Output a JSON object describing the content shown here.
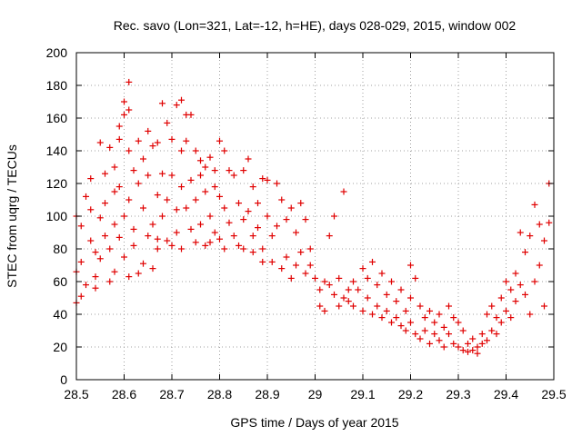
{
  "chart_data": {
    "type": "scatter",
    "title": "Rec. savo (Lon=321, Lat=-12, h=HE), days 028-029, 2015, window 002",
    "xlabel": "GPS time / Days of year 2015",
    "ylabel": "STEC from uqrg / TECUs",
    "xlim": [
      28.5,
      29.5
    ],
    "ylim": [
      0,
      200
    ],
    "x_ticks": [
      28.5,
      28.6,
      28.7,
      28.8,
      28.9,
      29.0,
      29.1,
      29.2,
      29.3,
      29.4,
      29.5
    ],
    "x_tick_labels": [
      "28.5",
      "28.6",
      "28.7",
      "28.8",
      "28.9",
      "29",
      "29.1",
      "29.2",
      "29.3",
      "29.4",
      "29.5"
    ],
    "y_ticks": [
      0,
      20,
      40,
      60,
      80,
      100,
      120,
      140,
      160,
      180,
      200
    ],
    "y_tick_labels": [
      "0",
      "20",
      "40",
      "60",
      "80",
      "100",
      "120",
      "140",
      "160",
      "180",
      "200"
    ],
    "grid": true,
    "marker": "+",
    "color": "#e00000",
    "series": [
      {
        "name": "STEC",
        "points": [
          [
            28.5,
            47
          ],
          [
            28.5,
            66
          ],
          [
            28.5,
            100
          ],
          [
            28.51,
            51
          ],
          [
            28.51,
            72
          ],
          [
            28.51,
            94
          ],
          [
            28.52,
            112
          ],
          [
            28.52,
            58
          ],
          [
            28.53,
            85
          ],
          [
            28.53,
            123
          ],
          [
            28.53,
            104
          ],
          [
            28.54,
            63
          ],
          [
            28.54,
            78
          ],
          [
            28.54,
            56
          ],
          [
            28.55,
            145
          ],
          [
            28.55,
            99
          ],
          [
            28.55,
            74
          ],
          [
            28.56,
            88
          ],
          [
            28.56,
            126
          ],
          [
            28.56,
            108
          ],
          [
            28.57,
            60
          ],
          [
            28.57,
            142
          ],
          [
            28.57,
            80
          ],
          [
            28.58,
            95
          ],
          [
            28.58,
            130
          ],
          [
            28.58,
            115
          ],
          [
            28.58,
            66
          ],
          [
            28.59,
            118
          ],
          [
            28.59,
            147
          ],
          [
            28.59,
            155
          ],
          [
            28.59,
            87
          ],
          [
            28.6,
            162
          ],
          [
            28.6,
            170
          ],
          [
            28.6,
            100
          ],
          [
            28.6,
            75
          ],
          [
            28.61,
            182
          ],
          [
            28.61,
            165
          ],
          [
            28.61,
            140
          ],
          [
            28.61,
            110
          ],
          [
            28.61,
            63
          ],
          [
            28.62,
            128
          ],
          [
            28.62,
            92
          ],
          [
            28.62,
            82
          ],
          [
            28.63,
            146
          ],
          [
            28.63,
            120
          ],
          [
            28.63,
            65
          ],
          [
            28.64,
            105
          ],
          [
            28.64,
            135
          ],
          [
            28.64,
            71
          ],
          [
            28.65,
            152
          ],
          [
            28.65,
            125
          ],
          [
            28.65,
            88
          ],
          [
            28.66,
            143
          ],
          [
            28.66,
            95
          ],
          [
            28.66,
            68
          ],
          [
            28.67,
            145
          ],
          [
            28.67,
            113
          ],
          [
            28.67,
            86
          ],
          [
            28.67,
            80
          ],
          [
            28.68,
            169
          ],
          [
            28.68,
            126
          ],
          [
            28.68,
            100
          ],
          [
            28.69,
            157
          ],
          [
            28.69,
            110
          ],
          [
            28.69,
            85
          ],
          [
            28.7,
            147
          ],
          [
            28.7,
            125
          ],
          [
            28.7,
            82
          ],
          [
            28.71,
            168
          ],
          [
            28.71,
            104
          ],
          [
            28.71,
            90
          ],
          [
            28.72,
            171
          ],
          [
            28.72,
            140
          ],
          [
            28.72,
            118
          ],
          [
            28.72,
            80
          ],
          [
            28.73,
            162
          ],
          [
            28.73,
            146
          ],
          [
            28.73,
            105
          ],
          [
            28.74,
            162
          ],
          [
            28.74,
            122
          ],
          [
            28.74,
            92
          ],
          [
            28.75,
            140
          ],
          [
            28.75,
            110
          ],
          [
            28.75,
            84
          ],
          [
            28.76,
            134
          ],
          [
            28.76,
            125
          ],
          [
            28.76,
            95
          ],
          [
            28.77,
            130
          ],
          [
            28.77,
            115
          ],
          [
            28.77,
            82
          ],
          [
            28.78,
            136
          ],
          [
            28.78,
            100
          ],
          [
            28.78,
            84
          ],
          [
            28.79,
            128
          ],
          [
            28.79,
            118
          ],
          [
            28.79,
            90
          ],
          [
            28.8,
            146
          ],
          [
            28.8,
            112
          ],
          [
            28.8,
            86
          ],
          [
            28.81,
            140
          ],
          [
            28.81,
            105
          ],
          [
            28.81,
            80
          ],
          [
            28.82,
            128
          ],
          [
            28.82,
            96
          ],
          [
            28.83,
            125
          ],
          [
            28.83,
            88
          ],
          [
            28.84,
            108
          ],
          [
            28.84,
            82
          ],
          [
            28.85,
            128
          ],
          [
            28.85,
            98
          ],
          [
            28.85,
            80
          ],
          [
            28.86,
            135
          ],
          [
            28.86,
            103
          ],
          [
            28.87,
            118
          ],
          [
            28.87,
            88
          ],
          [
            28.87,
            78
          ],
          [
            28.88,
            108
          ],
          [
            28.88,
            93
          ],
          [
            28.89,
            123
          ],
          [
            28.89,
            80
          ],
          [
            28.89,
            72
          ],
          [
            28.9,
            122
          ],
          [
            28.9,
            100
          ],
          [
            28.91,
            88
          ],
          [
            28.91,
            72
          ],
          [
            28.92,
            120
          ],
          [
            28.92,
            94
          ],
          [
            28.93,
            68
          ],
          [
            28.93,
            110
          ],
          [
            28.94,
            98
          ],
          [
            28.94,
            75
          ],
          [
            28.95,
            105
          ],
          [
            28.95,
            62
          ],
          [
            28.96,
            90
          ],
          [
            28.96,
            70
          ],
          [
            28.97,
            108
          ],
          [
            28.97,
            78
          ],
          [
            28.98,
            65
          ],
          [
            28.98,
            98
          ],
          [
            28.99,
            80
          ],
          [
            28.99,
            70
          ],
          [
            29.0,
            62
          ],
          [
            29.01,
            45
          ],
          [
            29.01,
            55
          ],
          [
            29.02,
            42
          ],
          [
            29.02,
            60
          ],
          [
            29.03,
            88
          ],
          [
            29.03,
            58
          ],
          [
            29.04,
            100
          ],
          [
            29.04,
            52
          ],
          [
            29.05,
            45
          ],
          [
            29.05,
            62
          ],
          [
            29.06,
            50
          ],
          [
            29.06,
            115
          ],
          [
            29.07,
            55
          ],
          [
            29.07,
            48
          ],
          [
            29.08,
            60
          ],
          [
            29.08,
            45
          ],
          [
            29.09,
            55
          ],
          [
            29.1,
            68
          ],
          [
            29.1,
            42
          ],
          [
            29.11,
            50
          ],
          [
            29.11,
            62
          ],
          [
            29.12,
            72
          ],
          [
            29.12,
            40
          ],
          [
            29.13,
            58
          ],
          [
            29.13,
            45
          ],
          [
            29.14,
            65
          ],
          [
            29.14,
            38
          ],
          [
            29.15,
            52
          ],
          [
            29.15,
            42
          ],
          [
            29.16,
            60
          ],
          [
            29.16,
            35
          ],
          [
            29.17,
            48
          ],
          [
            29.17,
            38
          ],
          [
            29.18,
            55
          ],
          [
            29.18,
            33
          ],
          [
            29.19,
            42
          ],
          [
            29.19,
            30
          ],
          [
            29.2,
            70
          ],
          [
            29.2,
            50
          ],
          [
            29.2,
            35
          ],
          [
            29.21,
            62
          ],
          [
            29.21,
            28
          ],
          [
            29.22,
            45
          ],
          [
            29.22,
            25
          ],
          [
            29.23,
            38
          ],
          [
            29.23,
            30
          ],
          [
            29.24,
            42
          ],
          [
            29.24,
            22
          ],
          [
            29.25,
            35
          ],
          [
            29.25,
            28
          ],
          [
            29.26,
            40
          ],
          [
            29.26,
            24
          ],
          [
            29.27,
            32
          ],
          [
            29.27,
            20
          ],
          [
            29.28,
            45
          ],
          [
            29.28,
            28
          ],
          [
            29.29,
            38
          ],
          [
            29.29,
            22
          ],
          [
            29.3,
            35
          ],
          [
            29.3,
            20
          ],
          [
            29.31,
            30
          ],
          [
            29.31,
            18
          ],
          [
            29.32,
            22
          ],
          [
            29.32,
            17
          ],
          [
            29.33,
            25
          ],
          [
            29.33,
            18
          ],
          [
            29.34,
            20
          ],
          [
            29.34,
            16
          ],
          [
            29.35,
            22
          ],
          [
            29.35,
            28
          ],
          [
            29.36,
            40
          ],
          [
            29.36,
            24
          ],
          [
            29.37,
            30
          ],
          [
            29.37,
            45
          ],
          [
            29.38,
            38
          ],
          [
            29.38,
            28
          ],
          [
            29.39,
            50
          ],
          [
            29.39,
            35
          ],
          [
            29.4,
            60
          ],
          [
            29.4,
            42
          ],
          [
            29.41,
            55
          ],
          [
            29.41,
            38
          ],
          [
            29.42,
            65
          ],
          [
            29.42,
            48
          ],
          [
            29.43,
            90
          ],
          [
            29.43,
            58
          ],
          [
            29.44,
            78
          ],
          [
            29.44,
            52
          ],
          [
            29.45,
            88
          ],
          [
            29.45,
            40
          ],
          [
            29.46,
            107
          ],
          [
            29.46,
            60
          ],
          [
            29.47,
            95
          ],
          [
            29.47,
            70
          ],
          [
            29.48,
            85
          ],
          [
            29.48,
            45
          ],
          [
            29.49,
            96
          ],
          [
            29.49,
            120
          ]
        ]
      }
    ]
  }
}
